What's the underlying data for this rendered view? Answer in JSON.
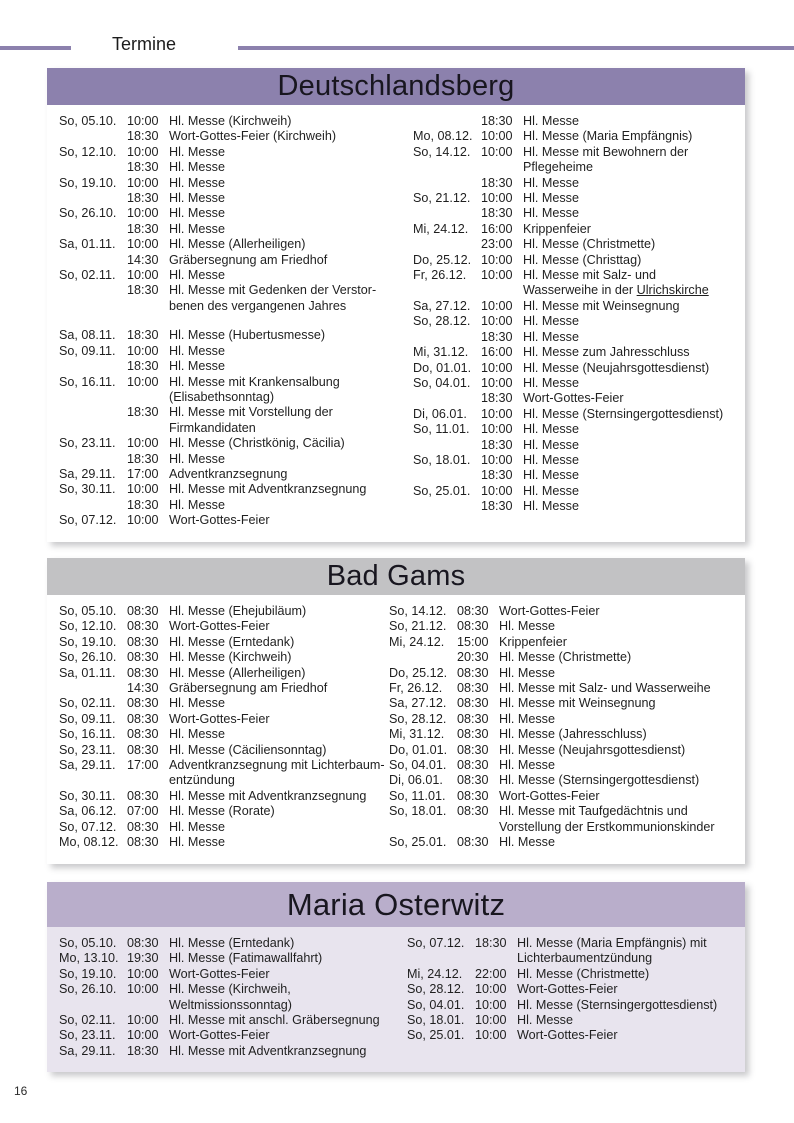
{
  "page": {
    "kicker": "Termine",
    "page_number": "16"
  },
  "colors": {
    "accent_purple": "#8c81ad",
    "bar_gray": "#c2c2c4",
    "bar_lavender": "#b9aecb",
    "body_lavender": "#e8e4ee",
    "text": "#1f1f1f"
  },
  "sections": [
    {
      "title": "Deutschlandsberg",
      "header_bg": "#8c81ad",
      "body_bg": "#ffffff",
      "columns": [
        [
          {
            "date": "So, 05.10.",
            "time": "10:00",
            "lines": [
              "Hl. Messe (Kirchweih)"
            ]
          },
          {
            "date": "",
            "time": "18:30",
            "lines": [
              "Wort-Gottes-Feier (Kirchweih)"
            ]
          },
          {
            "date": "So, 12.10.",
            "time": "10:00",
            "lines": [
              "Hl. Messe"
            ]
          },
          {
            "date": "",
            "time": "18:30",
            "lines": [
              "Hl. Messe"
            ]
          },
          {
            "date": "So, 19.10.",
            "time": "10:00",
            "lines": [
              "Hl. Messe"
            ]
          },
          {
            "date": "",
            "time": "18:30",
            "lines": [
              "Hl. Messe"
            ]
          },
          {
            "date": "So, 26.10.",
            "time": "10:00",
            "lines": [
              "Hl. Messe"
            ]
          },
          {
            "date": "",
            "time": "18:30",
            "lines": [
              "Hl. Messe"
            ]
          },
          {
            "date": "Sa, 01.11.",
            "time": "10:00",
            "lines": [
              "Hl. Messe (Allerheiligen)"
            ]
          },
          {
            "date": "",
            "time": "14:30",
            "lines": [
              "Gräbersegnung am Friedhof"
            ]
          },
          {
            "date": "So, 02.11.",
            "time": "10:00",
            "lines": [
              "Hl. Messe"
            ]
          },
          {
            "date": "",
            "time": "18:30",
            "lines": [
              "Hl. Messe mit Gedenken der Verstor-",
              "benen des vergangenen Jahres"
            ]
          },
          {
            "spacer": true
          },
          {
            "date": "Sa, 08.11.",
            "time": "18:30",
            "lines": [
              "Hl. Messe (Hubertusmesse)"
            ]
          },
          {
            "date": "So, 09.11.",
            "time": "10:00",
            "lines": [
              "Hl. Messe"
            ]
          },
          {
            "date": "",
            "time": "18:30",
            "lines": [
              "Hl. Messe"
            ]
          },
          {
            "date": "So, 16.11.",
            "time": "10:00",
            "lines": [
              "Hl. Messe mit Krankensalbung",
              "(Elisabethsonntag)"
            ]
          },
          {
            "date": "",
            "time": "18:30",
            "lines": [
              "Hl. Messe mit Vorstellung der",
              "Firmkandidaten"
            ]
          },
          {
            "date": "So, 23.11.",
            "time": "10:00",
            "lines": [
              "Hl. Messe (Christkönig, Cäcilia)"
            ]
          },
          {
            "date": "",
            "time": "18:30",
            "lines": [
              "Hl. Messe"
            ]
          },
          {
            "date": "Sa, 29.11.",
            "time": "17:00",
            "lines": [
              "Adventkranzsegnung"
            ]
          },
          {
            "date": "So, 30.11.",
            "time": "10:00",
            "lines": [
              "Hl. Messe mit Adventkranzsegnung"
            ]
          },
          {
            "date": "",
            "time": "18:30",
            "lines": [
              "Hl. Messe"
            ]
          },
          {
            "date": "So, 07.12.",
            "time": "10:00",
            "lines": [
              "Wort-Gottes-Feier"
            ]
          }
        ],
        [
          {
            "date": "",
            "time": "18:30",
            "lines": [
              "Hl. Messe"
            ]
          },
          {
            "date": "Mo, 08.12.",
            "time": "10:00",
            "lines": [
              "Hl. Messe (Maria Empfängnis)"
            ]
          },
          {
            "date": "So, 14.12.",
            "time": "10:00",
            "lines": [
              "Hl. Messe mit Bewohnern der",
              "Pflegeheime"
            ]
          },
          {
            "date": "",
            "time": "18:30",
            "lines": [
              "Hl. Messe"
            ]
          },
          {
            "date": "So, 21.12.",
            "time": "10:00",
            "lines": [
              "Hl. Messe"
            ]
          },
          {
            "date": "",
            "time": "18:30",
            "lines": [
              "Hl. Messe"
            ]
          },
          {
            "date": "Mi, 24.12.",
            "time": "16:00",
            "lines": [
              "Krippenfeier"
            ]
          },
          {
            "date": "",
            "time": "23:00",
            "lines": [
              "Hl. Messe (Christmette)"
            ]
          },
          {
            "date": "Do, 25.12.",
            "time": "10:00",
            "lines": [
              "Hl. Messe (Christtag)"
            ]
          },
          {
            "date": "Fr, 26.12.",
            "time": "10:00",
            "lines": [
              "Hl. Messe mit Salz- und",
              [
                {
                  "text": "Wasserweihe in der "
                },
                {
                  "text": "Ulrichskirche",
                  "underline": true
                }
              ]
            ]
          },
          {
            "date": "Sa, 27.12.",
            "time": "10:00",
            "lines": [
              "Hl. Messe mit Weinsegnung"
            ]
          },
          {
            "date": "So, 28.12.",
            "time": "10:00",
            "lines": [
              "Hl. Messe"
            ]
          },
          {
            "date": "",
            "time": "18:30",
            "lines": [
              "Hl. Messe"
            ]
          },
          {
            "date": "Mi, 31.12.",
            "time": "16:00",
            "lines": [
              "Hl. Messe zum Jahresschluss"
            ]
          },
          {
            "date": "Do, 01.01.",
            "time": "10:00",
            "lines": [
              "Hl. Messe (Neujahrsgottesdienst)"
            ]
          },
          {
            "date": "So, 04.01.",
            "time": "10:00",
            "lines": [
              "Hl. Messe"
            ]
          },
          {
            "date": "",
            "time": "18:30",
            "lines": [
              "Wort-Gottes-Feier"
            ]
          },
          {
            "date": "Di, 06.01.",
            "time": "10:00",
            "lines": [
              "Hl. Messe (Sternsingergottesdienst)"
            ]
          },
          {
            "date": "So, 11.01.",
            "time": "10:00",
            "lines": [
              "Hl. Messe"
            ]
          },
          {
            "date": "",
            "time": "18:30",
            "lines": [
              "Hl. Messe"
            ]
          },
          {
            "date": "So, 18.01.",
            "time": "10:00",
            "lines": [
              "Hl. Messe"
            ]
          },
          {
            "date": "",
            "time": "18:30",
            "lines": [
              "Hl. Messe"
            ]
          },
          {
            "date": "So, 25.01.",
            "time": "10:00",
            "lines": [
              "Hl. Messe"
            ]
          },
          {
            "date": "",
            "time": "18:30",
            "lines": [
              "Hl. Messe"
            ]
          }
        ]
      ]
    },
    {
      "title": "Bad Gams",
      "header_bg": "#c2c2c4",
      "body_bg": "#ffffff",
      "columns": [
        [
          {
            "date": "So, 05.10.",
            "time": "08:30",
            "lines": [
              "Hl. Messe (Ehejubiläum)"
            ]
          },
          {
            "date": "So, 12.10.",
            "time": "08:30",
            "lines": [
              "Wort-Gottes-Feier"
            ]
          },
          {
            "date": "So, 19.10.",
            "time": "08:30",
            "lines": [
              "Hl. Messe (Erntedank)"
            ]
          },
          {
            "date": "So, 26.10.",
            "time": "08:30",
            "lines": [
              "Hl. Messe (Kirchweih)"
            ]
          },
          {
            "date": "Sa, 01.11.",
            "time": "08:30",
            "lines": [
              "Hl. Messe (Allerheiligen)"
            ]
          },
          {
            "date": "",
            "time": "14:30",
            "lines": [
              "Gräbersegnung am Friedhof"
            ]
          },
          {
            "date": "So, 02.11.",
            "time": "08:30",
            "lines": [
              "Hl. Messe"
            ]
          },
          {
            "date": "So, 09.11.",
            "time": "08:30",
            "lines": [
              "Wort-Gottes-Feier"
            ]
          },
          {
            "date": "So, 16.11.",
            "time": "08:30",
            "lines": [
              "Hl. Messe"
            ]
          },
          {
            "date": "So, 23.11.",
            "time": "08:30",
            "lines": [
              "Hl. Messe (Cäciliensonntag)"
            ]
          },
          {
            "date": "Sa, 29.11.",
            "time": "17:00",
            "lines": [
              "Adventkranzsegnung mit Lichterbaum-",
              "entzündung"
            ]
          },
          {
            "date": "So, 30.11.",
            "time": "08:30",
            "lines": [
              "Hl. Messe mit Adventkranzsegnung"
            ]
          },
          {
            "date": "Sa, 06.12.",
            "time": "07:00",
            "lines": [
              "Hl. Messe (Rorate)"
            ]
          },
          {
            "date": "So, 07.12.",
            "time": "08:30",
            "lines": [
              "Hl. Messe"
            ]
          },
          {
            "date": "Mo, 08.12.",
            "time": "08:30",
            "lines": [
              "Hl. Messe"
            ]
          }
        ],
        [
          {
            "date": "So, 14.12.",
            "time": "08:30",
            "lines": [
              "Wort-Gottes-Feier"
            ]
          },
          {
            "date": "So, 21.12.",
            "time": "08:30",
            "lines": [
              "Hl. Messe"
            ]
          },
          {
            "date": "Mi, 24.12.",
            "time": "15:00",
            "lines": [
              "Krippenfeier"
            ]
          },
          {
            "date": "",
            "time": "20:30",
            "lines": [
              "Hl. Messe (Christmette)"
            ]
          },
          {
            "date": "Do, 25.12.",
            "time": "08:30",
            "lines": [
              "Hl. Messe"
            ]
          },
          {
            "date": "Fr, 26.12.",
            "time": "08:30",
            "lines": [
              "Hl. Messe mit Salz- und Wasserweihe"
            ]
          },
          {
            "date": "Sa, 27.12.",
            "time": "08:30",
            "lines": [
              "Hl. Messe mit Weinsegnung"
            ]
          },
          {
            "date": "So, 28.12.",
            "time": "08:30",
            "lines": [
              "Hl. Messe"
            ]
          },
          {
            "date": "Mi, 31.12.",
            "time": "08:30",
            "lines": [
              "Hl. Messe (Jahresschluss)"
            ]
          },
          {
            "date": "Do, 01.01.",
            "time": "08:30",
            "lines": [
              "Hl. Messe (Neujahrsgottesdienst)"
            ]
          },
          {
            "date": "So, 04.01.",
            "time": "08:30",
            "lines": [
              "Hl. Messe"
            ]
          },
          {
            "date": "Di, 06.01.",
            "time": "08:30",
            "lines": [
              "Hl. Messe (Sternsingergottesdienst)"
            ]
          },
          {
            "date": "So, 11.01.",
            "time": "08:30",
            "lines": [
              "Wort-Gottes-Feier"
            ]
          },
          {
            "date": "So, 18.01.",
            "time": "08:30",
            "lines": [
              "Hl. Messe mit Taufgedächtnis und",
              "Vorstellung der Erstkommunionskinder"
            ]
          },
          {
            "date": "So, 25.01.",
            "time": "08:30",
            "lines": [
              "Hl. Messe"
            ]
          }
        ]
      ]
    },
    {
      "title": "Maria Osterwitz",
      "header_bg": "#b9aecb",
      "body_bg": "#e8e4ee",
      "columns": [
        [
          {
            "date": "So, 05.10.",
            "time": "08:30",
            "lines": [
              "Hl. Messe (Erntedank)"
            ]
          },
          {
            "date": "Mo, 13.10.",
            "time": "19:30",
            "lines": [
              "Hl. Messe (Fatimawallfahrt)"
            ]
          },
          {
            "date": "So, 19.10.",
            "time": "10:00",
            "lines": [
              "Wort-Gottes-Feier"
            ]
          },
          {
            "date": "So, 26.10.",
            "time": "10:00",
            "lines": [
              "Hl. Messe (Kirchweih,",
              "Weltmissionssonntag)"
            ]
          },
          {
            "date": "So, 02.11.",
            "time": "10:00",
            "lines": [
              "Hl. Messe mit anschl. Gräbersegnung"
            ]
          },
          {
            "date": "So, 23.11.",
            "time": "10:00",
            "lines": [
              "Wort-Gottes-Feier"
            ]
          },
          {
            "date": "Sa, 29.11.",
            "time": "18:30",
            "lines": [
              "Hl. Messe mit Adventkranzsegnung"
            ]
          }
        ],
        [
          {
            "date": "So, 07.12.",
            "time": "18:30",
            "lines": [
              "Hl. Messe (Maria Empfängnis) mit",
              "Lichterbaumentzündung"
            ]
          },
          {
            "date": "Mi, 24.12.",
            "time": "22:00",
            "lines": [
              "Hl. Messe (Christmette)"
            ]
          },
          {
            "date": "So, 28.12.",
            "time": "10:00",
            "lines": [
              "Wort-Gottes-Feier"
            ]
          },
          {
            "date": "So, 04.01.",
            "time": "10:00",
            "lines": [
              "Hl. Messe (Sternsingergottesdienst)"
            ]
          },
          {
            "date": "So, 18.01.",
            "time": "10:00",
            "lines": [
              "Hl. Messe"
            ]
          },
          {
            "date": "So, 25.01.",
            "time": "10:00",
            "lines": [
              "Wort-Gottes-Feier"
            ]
          }
        ]
      ]
    }
  ]
}
